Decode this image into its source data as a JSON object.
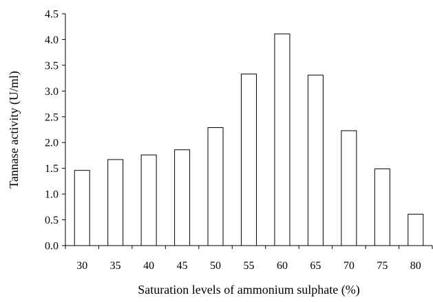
{
  "chart_data": {
    "type": "bar",
    "title": "",
    "xlabel": "Saturation levels of ammonium sulphate (%)",
    "ylabel": "Tannase activity (U/ml)",
    "categories": [
      "30",
      "35",
      "40",
      "45",
      "50",
      "55",
      "60",
      "65",
      "70",
      "75",
      "80"
    ],
    "values": [
      1.46,
      1.67,
      1.76,
      1.86,
      2.29,
      3.33,
      4.11,
      3.31,
      2.23,
      1.49,
      0.61
    ],
    "ylim": [
      0,
      4.5
    ],
    "yticks": [
      "0.0",
      "0.5",
      "1.0",
      "1.5",
      "2.0",
      "2.5",
      "3.0",
      "3.5",
      "4.0",
      "4.5"
    ],
    "grid": false,
    "legend": "none",
    "bar_fill": "#ffffff",
    "bar_stroke": "#000000"
  }
}
